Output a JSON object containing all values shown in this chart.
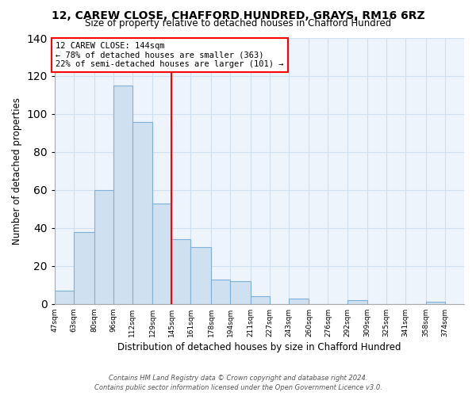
{
  "title": "12, CAREW CLOSE, CHAFFORD HUNDRED, GRAYS, RM16 6RZ",
  "subtitle": "Size of property relative to detached houses in Chafford Hundred",
  "xlabel": "Distribution of detached houses by size in Chafford Hundred",
  "ylabel": "Number of detached properties",
  "bins": [
    47,
    63,
    80,
    96,
    112,
    129,
    145,
    161,
    178,
    194,
    211,
    227,
    243,
    260,
    276,
    292,
    309,
    325,
    341,
    358,
    374
  ],
  "counts": [
    7,
    38,
    60,
    115,
    96,
    53,
    34,
    30,
    13,
    12,
    4,
    0,
    3,
    0,
    0,
    2,
    0,
    0,
    0,
    1
  ],
  "bar_color": "#cfe0f0",
  "bar_edgecolor": "#7fb0d8",
  "reference_line_x": 145,
  "reference_line_color": "red",
  "annotation_title": "12 CAREW CLOSE: 144sqm",
  "annotation_line1": "← 78% of detached houses are smaller (363)",
  "annotation_line2": "22% of semi-detached houses are larger (101) →",
  "annotation_box_edgecolor": "red",
  "annotation_box_facecolor": "white",
  "ylim": [
    0,
    140
  ],
  "yticks": [
    0,
    20,
    40,
    60,
    80,
    100,
    120,
    140
  ],
  "tick_labels": [
    "47sqm",
    "63sqm",
    "80sqm",
    "96sqm",
    "112sqm",
    "129sqm",
    "145sqm",
    "161sqm",
    "178sqm",
    "194sqm",
    "211sqm",
    "227sqm",
    "243sqm",
    "260sqm",
    "276sqm",
    "292sqm",
    "309sqm",
    "325sqm",
    "341sqm",
    "358sqm",
    "374sqm"
  ],
  "footer_line1": "Contains HM Land Registry data © Crown copyright and database right 2024.",
  "footer_line2": "Contains public sector information licensed under the Open Government Licence v3.0.",
  "grid_color": "#d0dff0",
  "bg_color": "#eef4fc"
}
